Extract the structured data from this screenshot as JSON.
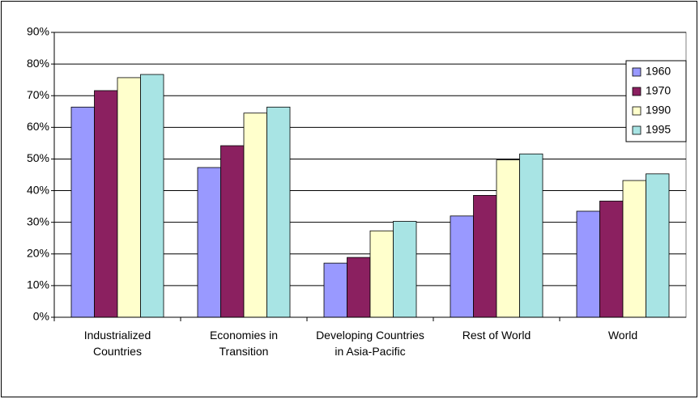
{
  "chart_data": {
    "type": "bar",
    "categories": [
      "Industrialized Countries",
      "Economies in Transition",
      "Developing Countries in Asia-Pacific",
      "Rest of World",
      "World"
    ],
    "series": [
      {
        "name": "1960",
        "color": "#9999ff",
        "values": [
          66.4,
          47.3,
          17.1,
          32,
          33.5
        ]
      },
      {
        "name": "1970",
        "color": "#8b2060",
        "values": [
          71.6,
          54.2,
          18.9,
          38.5,
          36.7
        ]
      },
      {
        "name": "1990",
        "color": "#ffffcc",
        "values": [
          75.7,
          64.5,
          27.3,
          49.7,
          43.2
        ]
      },
      {
        "name": "1995",
        "color": "#a8e4e4",
        "values": [
          76.7,
          66.4,
          30.3,
          51.6,
          45.3
        ]
      }
    ],
    "ylim": [
      0,
      90
    ],
    "yticks": [
      {
        "value": 0,
        "label": "0%"
      },
      {
        "value": 10,
        "label": "10%"
      },
      {
        "value": 20,
        "label": "20%"
      },
      {
        "value": 30,
        "label": "30%"
      },
      {
        "value": 40,
        "label": "40%"
      },
      {
        "value": 50,
        "label": "50%"
      },
      {
        "value": 60,
        "label": "60%"
      },
      {
        "value": 70,
        "label": "70%"
      },
      {
        "value": 80,
        "label": "80%"
      },
      {
        "value": 90,
        "label": "90%"
      }
    ],
    "grid": true,
    "legend": "upper right"
  }
}
